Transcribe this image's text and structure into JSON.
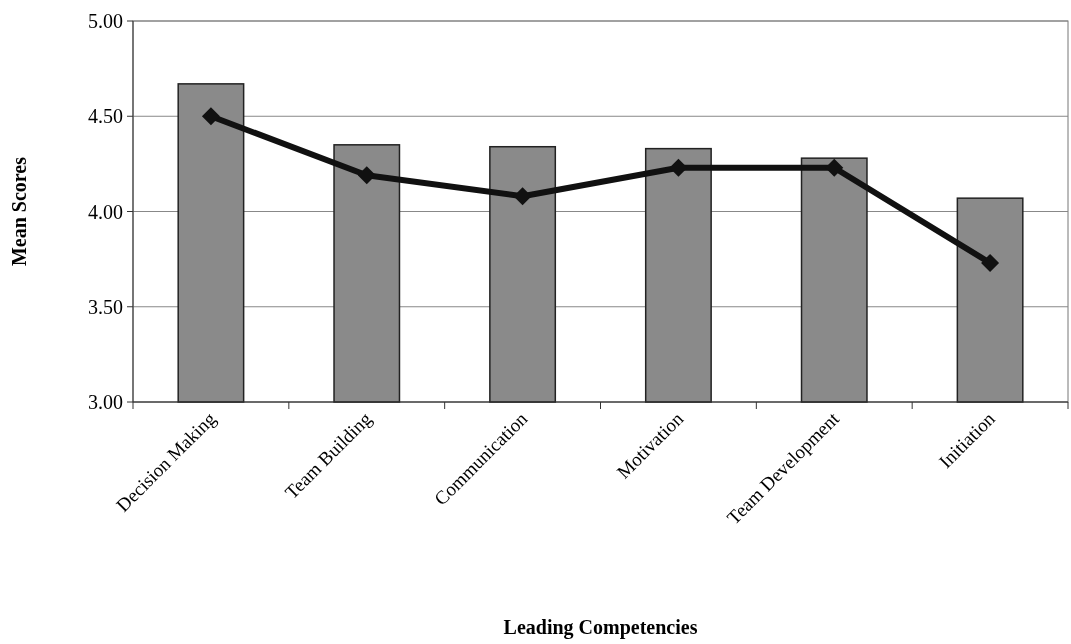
{
  "chart_data": {
    "type": "bar",
    "xlabel": "Leading Competencies",
    "ylabel": "Mean Scores",
    "categories": [
      "Decision Making",
      "Team Building",
      "Communication",
      "Motivation",
      "Team Development",
      "Initiation"
    ],
    "series": [
      {
        "color": "#8a8a8a",
        "values": [
          4.67,
          4.35,
          4.34,
          4.33,
          4.28,
          4.07
        ]
      },
      {
        "type": "line",
        "color": "#111111",
        "values": [
          4.5,
          4.19,
          4.08,
          4.23,
          4.23,
          3.73
        ]
      }
    ],
    "ylim": [
      3,
      5
    ],
    "yticks": [
      {
        "value": 3,
        "label": "3.00"
      },
      {
        "value": 3.5,
        "label": "3.50"
      },
      {
        "value": 4,
        "label": "4.00"
      },
      {
        "value": 4.5,
        "label": "4.50"
      },
      {
        "value": 5,
        "label": "5.00"
      }
    ],
    "grid": "y",
    "marker": "diamond",
    "line_style": "solid"
  }
}
